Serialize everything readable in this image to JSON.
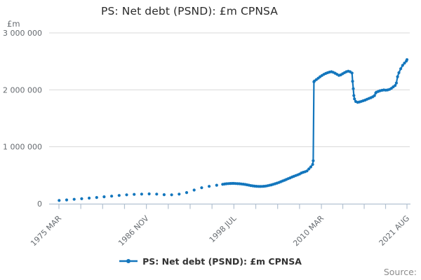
{
  "title": "PS: Net debt (PSND): £m CPNSA",
  "y_axis": {
    "unit_label": "£m",
    "ticks": [
      {
        "value": 0,
        "label": "0"
      },
      {
        "value": 1000000,
        "label": "1 000 000"
      },
      {
        "value": 2000000,
        "label": "2 000 000"
      },
      {
        "value": 3000000,
        "label": "3 000 000"
      }
    ]
  },
  "x_axis": {
    "major_ticks": [
      {
        "year": 1975.17,
        "label": "1975 MAR"
      },
      {
        "year": 1986.83,
        "label": "1986 NOV"
      },
      {
        "year": 1998.5,
        "label": "1998 JUL"
      },
      {
        "year": 2010.17,
        "label": "2010 MAR"
      },
      {
        "year": 2021.58,
        "label": "2021 AUG"
      }
    ],
    "minor_ticks_between": 3
  },
  "legend": {
    "series_label": "PS: Net debt (PSND): £m CPNSA"
  },
  "source_label": "Source:",
  "colors": {
    "series": "#1376bd",
    "grid": "#d8d8d8",
    "axis": "#b3c1d1",
    "label_text": "#666b70",
    "title_text": "#2b2b2b",
    "legend_text": "#333333",
    "source_text": "#8c8c8c"
  },
  "chart_data": {
    "type": "line",
    "title": "PS: Net debt (PSND): £m CPNSA",
    "xlabel": "",
    "ylabel": "£m",
    "x_unit": "decimal_year",
    "xlim": [
      1975.17,
      2021.67
    ],
    "ylim": [
      0,
      3000000
    ],
    "grid": "horizontal",
    "legend_position": "bottom",
    "marker": "circle",
    "line_from_year": 1997,
    "series": [
      {
        "name": "PS: Net debt (PSND): £m CPNSA",
        "points": [
          [
            1975.2,
            56000
          ],
          [
            1976.2,
            67000
          ],
          [
            1977.2,
            77000
          ],
          [
            1978.2,
            87000
          ],
          [
            1979.2,
            98000
          ],
          [
            1980.2,
            110000
          ],
          [
            1981.2,
            122000
          ],
          [
            1982.2,
            133000
          ],
          [
            1983.2,
            145000
          ],
          [
            1984.2,
            156000
          ],
          [
            1985.2,
            163000
          ],
          [
            1986.2,
            168000
          ],
          [
            1987.2,
            172000
          ],
          [
            1988.2,
            168000
          ],
          [
            1989.2,
            158000
          ],
          [
            1990.2,
            156000
          ],
          [
            1991.2,
            168000
          ],
          [
            1992.2,
            195000
          ],
          [
            1993.2,
            240000
          ],
          [
            1994.2,
            280000
          ],
          [
            1995.2,
            305000
          ],
          [
            1996.2,
            325000
          ],
          [
            1997.0,
            340000
          ],
          [
            1997.25,
            345000
          ],
          [
            1997.5,
            350000
          ],
          [
            1997.75,
            353000
          ],
          [
            1998.0,
            355000
          ],
          [
            1998.25,
            357000
          ],
          [
            1998.5,
            356000
          ],
          [
            1998.75,
            354000
          ],
          [
            1999.0,
            352000
          ],
          [
            1999.25,
            350000
          ],
          [
            1999.5,
            347000
          ],
          [
            1999.75,
            343000
          ],
          [
            2000.0,
            338000
          ],
          [
            2000.25,
            332000
          ],
          [
            2000.5,
            326000
          ],
          [
            2000.75,
            319000
          ],
          [
            2001.0,
            313000
          ],
          [
            2001.25,
            309000
          ],
          [
            2001.5,
            306000
          ],
          [
            2001.75,
            304000
          ],
          [
            2002.0,
            303000
          ],
          [
            2002.25,
            304000
          ],
          [
            2002.5,
            306000
          ],
          [
            2002.75,
            310000
          ],
          [
            2003.0,
            316000
          ],
          [
            2003.25,
            323000
          ],
          [
            2003.5,
            331000
          ],
          [
            2003.75,
            340000
          ],
          [
            2004.0,
            350000
          ],
          [
            2004.25,
            361000
          ],
          [
            2004.5,
            373000
          ],
          [
            2004.75,
            386000
          ],
          [
            2005.0,
            399000
          ],
          [
            2005.25,
            412000
          ],
          [
            2005.5,
            426000
          ],
          [
            2005.75,
            440000
          ],
          [
            2006.0,
            454000
          ],
          [
            2006.25,
            468000
          ],
          [
            2006.5,
            481000
          ],
          [
            2006.75,
            494000
          ],
          [
            2007.0,
            507000
          ],
          [
            2007.25,
            520000
          ],
          [
            2007.5,
            540000
          ],
          [
            2007.75,
            552000
          ],
          [
            2008.0,
            562000
          ],
          [
            2008.25,
            576000
          ],
          [
            2008.5,
            610000
          ],
          [
            2008.75,
            645000
          ],
          [
            2009.0,
            690000
          ],
          [
            2009.08,
            755000
          ],
          [
            2009.17,
            2140000
          ],
          [
            2009.25,
            2155000
          ],
          [
            2009.5,
            2180000
          ],
          [
            2009.75,
            2205000
          ],
          [
            2010.0,
            2230000
          ],
          [
            2010.25,
            2252000
          ],
          [
            2010.5,
            2272000
          ],
          [
            2010.75,
            2288000
          ],
          [
            2011.0,
            2300000
          ],
          [
            2011.25,
            2312000
          ],
          [
            2011.5,
            2318000
          ],
          [
            2011.75,
            2308000
          ],
          [
            2012.0,
            2292000
          ],
          [
            2012.25,
            2272000
          ],
          [
            2012.5,
            2255000
          ],
          [
            2012.75,
            2262000
          ],
          [
            2013.0,
            2282000
          ],
          [
            2013.25,
            2302000
          ],
          [
            2013.5,
            2318000
          ],
          [
            2013.75,
            2328000
          ],
          [
            2014.0,
            2318000
          ],
          [
            2014.25,
            2295000
          ],
          [
            2014.33,
            2150000
          ],
          [
            2014.42,
            2020000
          ],
          [
            2014.5,
            1900000
          ],
          [
            2014.58,
            1840000
          ],
          [
            2014.75,
            1795000
          ],
          [
            2015.0,
            1780000
          ],
          [
            2015.25,
            1788000
          ],
          [
            2015.5,
            1798000
          ],
          [
            2015.75,
            1808000
          ],
          [
            2016.0,
            1820000
          ],
          [
            2016.25,
            1834000
          ],
          [
            2016.5,
            1848000
          ],
          [
            2016.75,
            1862000
          ],
          [
            2017.0,
            1876000
          ],
          [
            2017.25,
            1898000
          ],
          [
            2017.42,
            1945000
          ],
          [
            2017.5,
            1958000
          ],
          [
            2017.75,
            1972000
          ],
          [
            2018.0,
            1984000
          ],
          [
            2018.25,
            1992000
          ],
          [
            2018.5,
            1998000
          ],
          [
            2018.75,
            1994000
          ],
          [
            2019.0,
            1998000
          ],
          [
            2019.25,
            2008000
          ],
          [
            2019.5,
            2026000
          ],
          [
            2019.75,
            2052000
          ],
          [
            2020.0,
            2075000
          ],
          [
            2020.17,
            2120000
          ],
          [
            2020.33,
            2230000
          ],
          [
            2020.5,
            2300000
          ],
          [
            2020.75,
            2370000
          ],
          [
            2021.0,
            2430000
          ],
          [
            2021.25,
            2470000
          ],
          [
            2021.5,
            2505000
          ],
          [
            2021.58,
            2530000
          ]
        ]
      }
    ]
  }
}
